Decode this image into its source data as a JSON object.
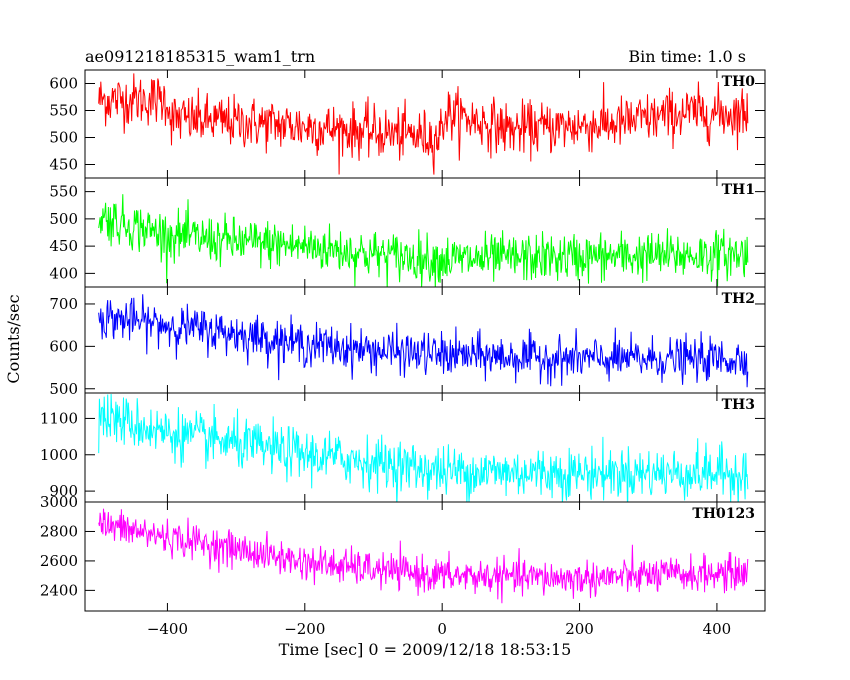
{
  "header": {
    "title": "ae091218185315_wam1_trn",
    "bin_time": "Bin time: 1.0 s"
  },
  "chart_data": {
    "type": "line",
    "xlabel": "Time [sec] 0 = 2009/12/18 18:53:15",
    "ylabel": "Counts/sec",
    "xlim": [
      -520,
      470
    ],
    "x_ticks": [
      -400,
      -200,
      0,
      200,
      400
    ],
    "x_tick_labels": [
      "−400",
      "−200",
      "0",
      "200",
      "400"
    ],
    "x_range": [
      -500,
      445
    ],
    "grid": false,
    "panels": [
      {
        "name": "TH0",
        "color": "#ff0000",
        "ylim": [
          425,
          625
        ],
        "y_ticks": [
          450,
          500,
          550,
          600
        ],
        "y_tick_labels": [
          "450",
          "500",
          "550",
          "600"
        ],
        "trend_x": [
          -500,
          -400,
          -395,
          -250,
          -100,
          -5,
          5,
          100,
          250,
          350,
          445
        ],
        "trend_y": [
          570,
          570,
          535,
          525,
          510,
          500,
          545,
          515,
          525,
          545,
          545
        ],
        "noise_sd": 24
      },
      {
        "name": "TH1",
        "color": "#00ff00",
        "ylim": [
          375,
          575
        ],
        "y_ticks": [
          400,
          450,
          500,
          550
        ],
        "y_tick_labels": [
          "400",
          "450",
          "500",
          "550"
        ],
        "trend_x": [
          -500,
          -400,
          -300,
          -200,
          -100,
          0,
          200,
          445
        ],
        "trend_y": [
          505,
          470,
          458,
          450,
          435,
          425,
          430,
          435
        ],
        "noise_sd": 22
      },
      {
        "name": "TH2",
        "color": "#0000ff",
        "ylim": [
          490,
          740
        ],
        "y_ticks": [
          500,
          600,
          700
        ],
        "y_tick_labels": [
          "500",
          "600",
          "700"
        ],
        "trend_x": [
          -500,
          -400,
          -300,
          -200,
          -100,
          0,
          200,
          445
        ],
        "trend_y": [
          670,
          650,
          630,
          605,
          590,
          580,
          570,
          570
        ],
        "noise_sd": 25
      },
      {
        "name": "TH3",
        "color": "#00ffff",
        "ylim": [
          870,
          1170
        ],
        "y_ticks": [
          900,
          1000,
          1100
        ],
        "y_tick_labels": [
          "900",
          "1000",
          "1100"
        ],
        "trend_x": [
          -500,
          -400,
          -300,
          -200,
          -100,
          0,
          200,
          445
        ],
        "trend_y": [
          1110,
          1060,
          1030,
          1000,
          980,
          955,
          950,
          950
        ],
        "noise_sd": 35
      },
      {
        "name": "TH0123",
        "color": "#ff00ff",
        "ylim": [
          2260,
          3000
        ],
        "y_ticks": [
          2400,
          2600,
          2800,
          3000
        ],
        "y_tick_labels": [
          "2400",
          "2600",
          "2800",
          "3000"
        ],
        "trend_x": [
          -500,
          -400,
          -300,
          -200,
          -100,
          0,
          200,
          300,
          445
        ],
        "trend_y": [
          2850,
          2760,
          2680,
          2590,
          2540,
          2500,
          2480,
          2500,
          2520
        ],
        "noise_sd": 60
      }
    ]
  }
}
